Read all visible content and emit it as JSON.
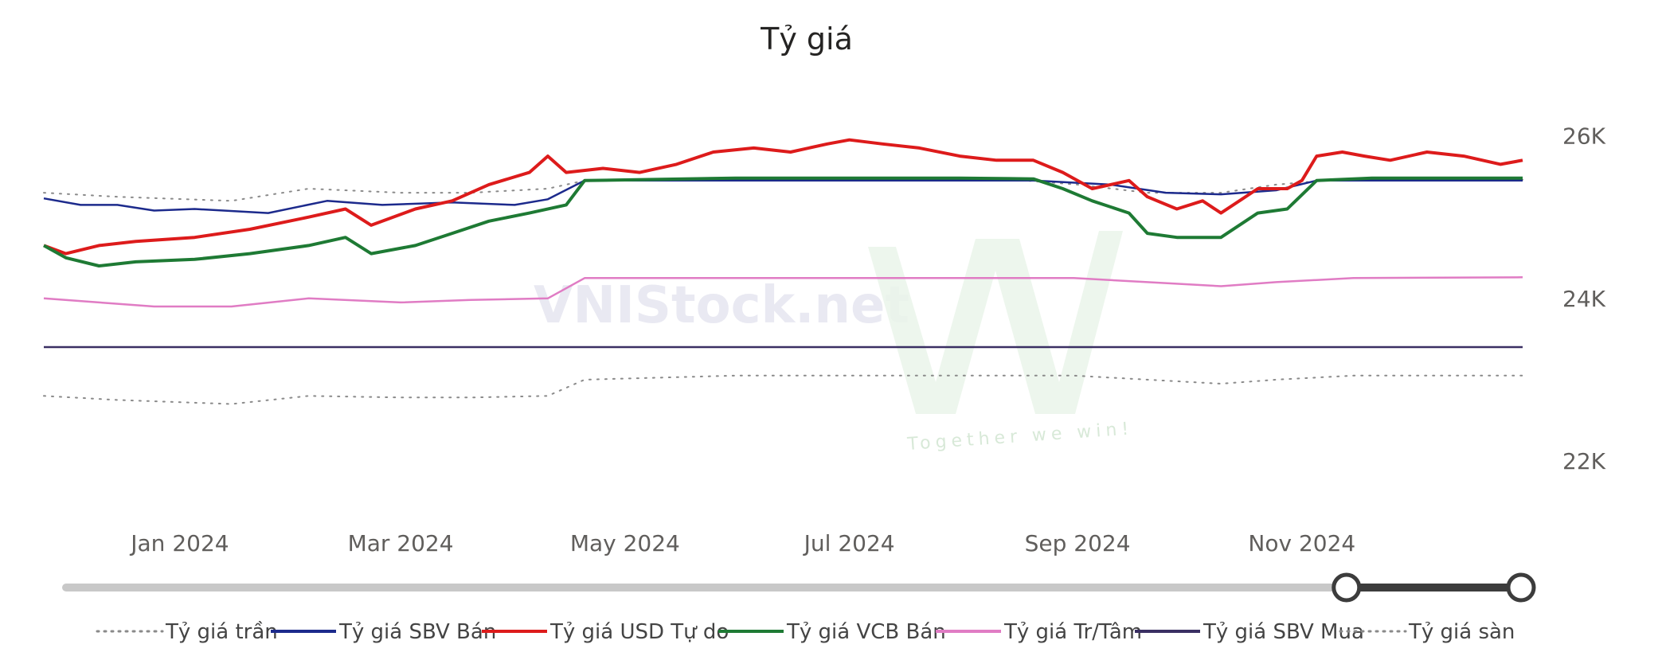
{
  "chart_data": {
    "type": "line",
    "title": "Tỷ giá",
    "x_range": [
      "2023-11-25",
      "2024-12-31"
    ],
    "ylim": [
      21500,
      26300
    ],
    "y_axis_position": "right",
    "y_ticks": [
      {
        "value": 26000,
        "label": "26K"
      },
      {
        "value": 24000,
        "label": "24K"
      },
      {
        "value": 22000,
        "label": "22K"
      }
    ],
    "x_ticks": [
      {
        "date": "2024-01-01",
        "label": "Jan 2024"
      },
      {
        "date": "2024-03-01",
        "label": "Mar 2024"
      },
      {
        "date": "2024-05-01",
        "label": "May 2024"
      },
      {
        "date": "2024-07-01",
        "label": "Jul 2024"
      },
      {
        "date": "2024-09-01",
        "label": "Sep 2024"
      },
      {
        "date": "2024-11-01",
        "label": "Nov 2024"
      }
    ],
    "grid": false,
    "legend_position": "bottom",
    "series": [
      {
        "name": "Tỷ giá trần",
        "color": "#8a8a8a",
        "style": "dotted",
        "points": [
          [
            "2023-11-25",
            25300
          ],
          [
            "2023-12-15",
            25250
          ],
          [
            "2024-01-15",
            25200
          ],
          [
            "2024-02-05",
            25350
          ],
          [
            "2024-03-01",
            25300
          ],
          [
            "2024-03-20",
            25300
          ],
          [
            "2024-04-10",
            25350
          ],
          [
            "2024-04-20",
            25450
          ],
          [
            "2024-05-15",
            25450
          ],
          [
            "2024-06-15",
            25450
          ],
          [
            "2024-07-15",
            25450
          ],
          [
            "2024-08-15",
            25460
          ],
          [
            "2024-09-01",
            25400
          ],
          [
            "2024-09-20",
            25300
          ],
          [
            "2024-10-10",
            25300
          ],
          [
            "2024-10-25",
            25400
          ],
          [
            "2024-11-10",
            25460
          ],
          [
            "2024-12-31",
            25460
          ]
        ]
      },
      {
        "name": "Tỷ giá SBV Bán",
        "color": "#1c2a8c",
        "style": "solid",
        "points": [
          [
            "2023-11-25",
            25230
          ],
          [
            "2023-12-05",
            25150
          ],
          [
            "2023-12-15",
            25150
          ],
          [
            "2023-12-25",
            25080
          ],
          [
            "2024-01-05",
            25100
          ],
          [
            "2024-01-25",
            25050
          ],
          [
            "2024-02-10",
            25200
          ],
          [
            "2024-02-25",
            25150
          ],
          [
            "2024-03-15",
            25180
          ],
          [
            "2024-04-01",
            25150
          ],
          [
            "2024-04-10",
            25220
          ],
          [
            "2024-04-20",
            25450
          ],
          [
            "2024-05-31",
            25450
          ],
          [
            "2024-06-30",
            25450
          ],
          [
            "2024-07-31",
            25450
          ],
          [
            "2024-08-20",
            25450
          ],
          [
            "2024-09-10",
            25400
          ],
          [
            "2024-09-25",
            25300
          ],
          [
            "2024-10-10",
            25280
          ],
          [
            "2024-10-25",
            25330
          ],
          [
            "2024-11-05",
            25450
          ],
          [
            "2024-12-31",
            25450
          ]
        ]
      },
      {
        "name": "Tỷ giá USD Tự do",
        "color": "#dd1b1b",
        "style": "solid",
        "points": [
          [
            "2023-11-25",
            24650
          ],
          [
            "2023-12-01",
            24550
          ],
          [
            "2023-12-10",
            24650
          ],
          [
            "2023-12-20",
            24700
          ],
          [
            "2024-01-05",
            24750
          ],
          [
            "2024-01-20",
            24850
          ],
          [
            "2024-02-05",
            25000
          ],
          [
            "2024-02-15",
            25100
          ],
          [
            "2024-02-22",
            24900
          ],
          [
            "2024-03-05",
            25100
          ],
          [
            "2024-03-15",
            25200
          ],
          [
            "2024-03-25",
            25400
          ],
          [
            "2024-04-05",
            25550
          ],
          [
            "2024-04-10",
            25750
          ],
          [
            "2024-04-15",
            25550
          ],
          [
            "2024-04-25",
            25600
          ],
          [
            "2024-05-05",
            25550
          ],
          [
            "2024-05-15",
            25650
          ],
          [
            "2024-05-25",
            25800
          ],
          [
            "2024-06-05",
            25850
          ],
          [
            "2024-06-15",
            25800
          ],
          [
            "2024-06-25",
            25900
          ],
          [
            "2024-07-01",
            25950
          ],
          [
            "2024-07-10",
            25900
          ],
          [
            "2024-07-20",
            25850
          ],
          [
            "2024-07-31",
            25750
          ],
          [
            "2024-08-10",
            25700
          ],
          [
            "2024-08-20",
            25700
          ],
          [
            "2024-08-28",
            25550
          ],
          [
            "2024-09-05",
            25350
          ],
          [
            "2024-09-15",
            25450
          ],
          [
            "2024-09-20",
            25250
          ],
          [
            "2024-09-28",
            25100
          ],
          [
            "2024-10-05",
            25200
          ],
          [
            "2024-10-10",
            25050
          ],
          [
            "2024-10-15",
            25200
          ],
          [
            "2024-10-20",
            25350
          ],
          [
            "2024-10-28",
            25350
          ],
          [
            "2024-11-01",
            25450
          ],
          [
            "2024-11-05",
            25750
          ],
          [
            "2024-11-12",
            25800
          ],
          [
            "2024-11-18",
            25750
          ],
          [
            "2024-11-25",
            25700
          ],
          [
            "2024-12-05",
            25800
          ],
          [
            "2024-12-15",
            25750
          ],
          [
            "2024-12-25",
            25650
          ],
          [
            "2024-12-31",
            25700
          ]
        ]
      },
      {
        "name": "Tỷ giá VCB Bán",
        "color": "#1e7a34",
        "style": "solid",
        "points": [
          [
            "2023-11-25",
            24650
          ],
          [
            "2023-12-01",
            24500
          ],
          [
            "2023-12-10",
            24400
          ],
          [
            "2023-12-20",
            24450
          ],
          [
            "2024-01-05",
            24480
          ],
          [
            "2024-01-20",
            24550
          ],
          [
            "2024-02-05",
            24650
          ],
          [
            "2024-02-15",
            24750
          ],
          [
            "2024-02-22",
            24550
          ],
          [
            "2024-03-05",
            24650
          ],
          [
            "2024-03-15",
            24800
          ],
          [
            "2024-03-25",
            24950
          ],
          [
            "2024-04-05",
            25050
          ],
          [
            "2024-04-15",
            25150
          ],
          [
            "2024-04-20",
            25450
          ],
          [
            "2024-05-31",
            25480
          ],
          [
            "2024-06-30",
            25480
          ],
          [
            "2024-07-31",
            25480
          ],
          [
            "2024-08-20",
            25470
          ],
          [
            "2024-08-28",
            25350
          ],
          [
            "2024-09-05",
            25200
          ],
          [
            "2024-09-15",
            25050
          ],
          [
            "2024-09-20",
            24800
          ],
          [
            "2024-09-28",
            24750
          ],
          [
            "2024-10-10",
            24750
          ],
          [
            "2024-10-20",
            25050
          ],
          [
            "2024-10-28",
            25100
          ],
          [
            "2024-11-05",
            25450
          ],
          [
            "2024-11-20",
            25480
          ],
          [
            "2024-12-31",
            25480
          ]
        ]
      },
      {
        "name": "Tỷ giá Tr/Tâm",
        "color": "#e07cc4",
        "style": "solid",
        "points": [
          [
            "2023-11-25",
            24000
          ],
          [
            "2023-12-10",
            23950
          ],
          [
            "2023-12-25",
            23900
          ],
          [
            "2024-01-15",
            23900
          ],
          [
            "2024-02-05",
            24000
          ],
          [
            "2024-03-01",
            23950
          ],
          [
            "2024-03-20",
            23980
          ],
          [
            "2024-04-10",
            24000
          ],
          [
            "2024-04-20",
            24250
          ],
          [
            "2024-05-31",
            24250
          ],
          [
            "2024-06-30",
            24250
          ],
          [
            "2024-07-31",
            24250
          ],
          [
            "2024-08-31",
            24250
          ],
          [
            "2024-09-20",
            24200
          ],
          [
            "2024-10-10",
            24150
          ],
          [
            "2024-10-25",
            24200
          ],
          [
            "2024-11-15",
            24250
          ],
          [
            "2024-12-31",
            24260
          ]
        ]
      },
      {
        "name": "Tỷ giá SBV Mua",
        "color": "#3a2f63",
        "style": "solid",
        "points": [
          [
            "2023-11-25",
            23400
          ],
          [
            "2024-12-31",
            23400
          ]
        ]
      },
      {
        "name": "Tỷ giá sàn",
        "color": "#8a8a8a",
        "style": "dotted",
        "points": [
          [
            "2023-11-25",
            22800
          ],
          [
            "2023-12-15",
            22750
          ],
          [
            "2024-01-15",
            22700
          ],
          [
            "2024-02-05",
            22800
          ],
          [
            "2024-03-01",
            22780
          ],
          [
            "2024-03-20",
            22780
          ],
          [
            "2024-04-10",
            22800
          ],
          [
            "2024-04-20",
            23000
          ],
          [
            "2024-05-31",
            23050
          ],
          [
            "2024-06-30",
            23050
          ],
          [
            "2024-07-31",
            23050
          ],
          [
            "2024-08-31",
            23050
          ],
          [
            "2024-09-20",
            23000
          ],
          [
            "2024-10-10",
            22950
          ],
          [
            "2024-10-25",
            23000
          ],
          [
            "2024-11-15",
            23050
          ],
          [
            "2024-12-31",
            23050
          ]
        ]
      }
    ]
  },
  "watermark": {
    "text": "VNIStock.net",
    "tagline": "Together we win!"
  },
  "slider": {
    "start_value": 0.88,
    "end_value": 1.0
  }
}
